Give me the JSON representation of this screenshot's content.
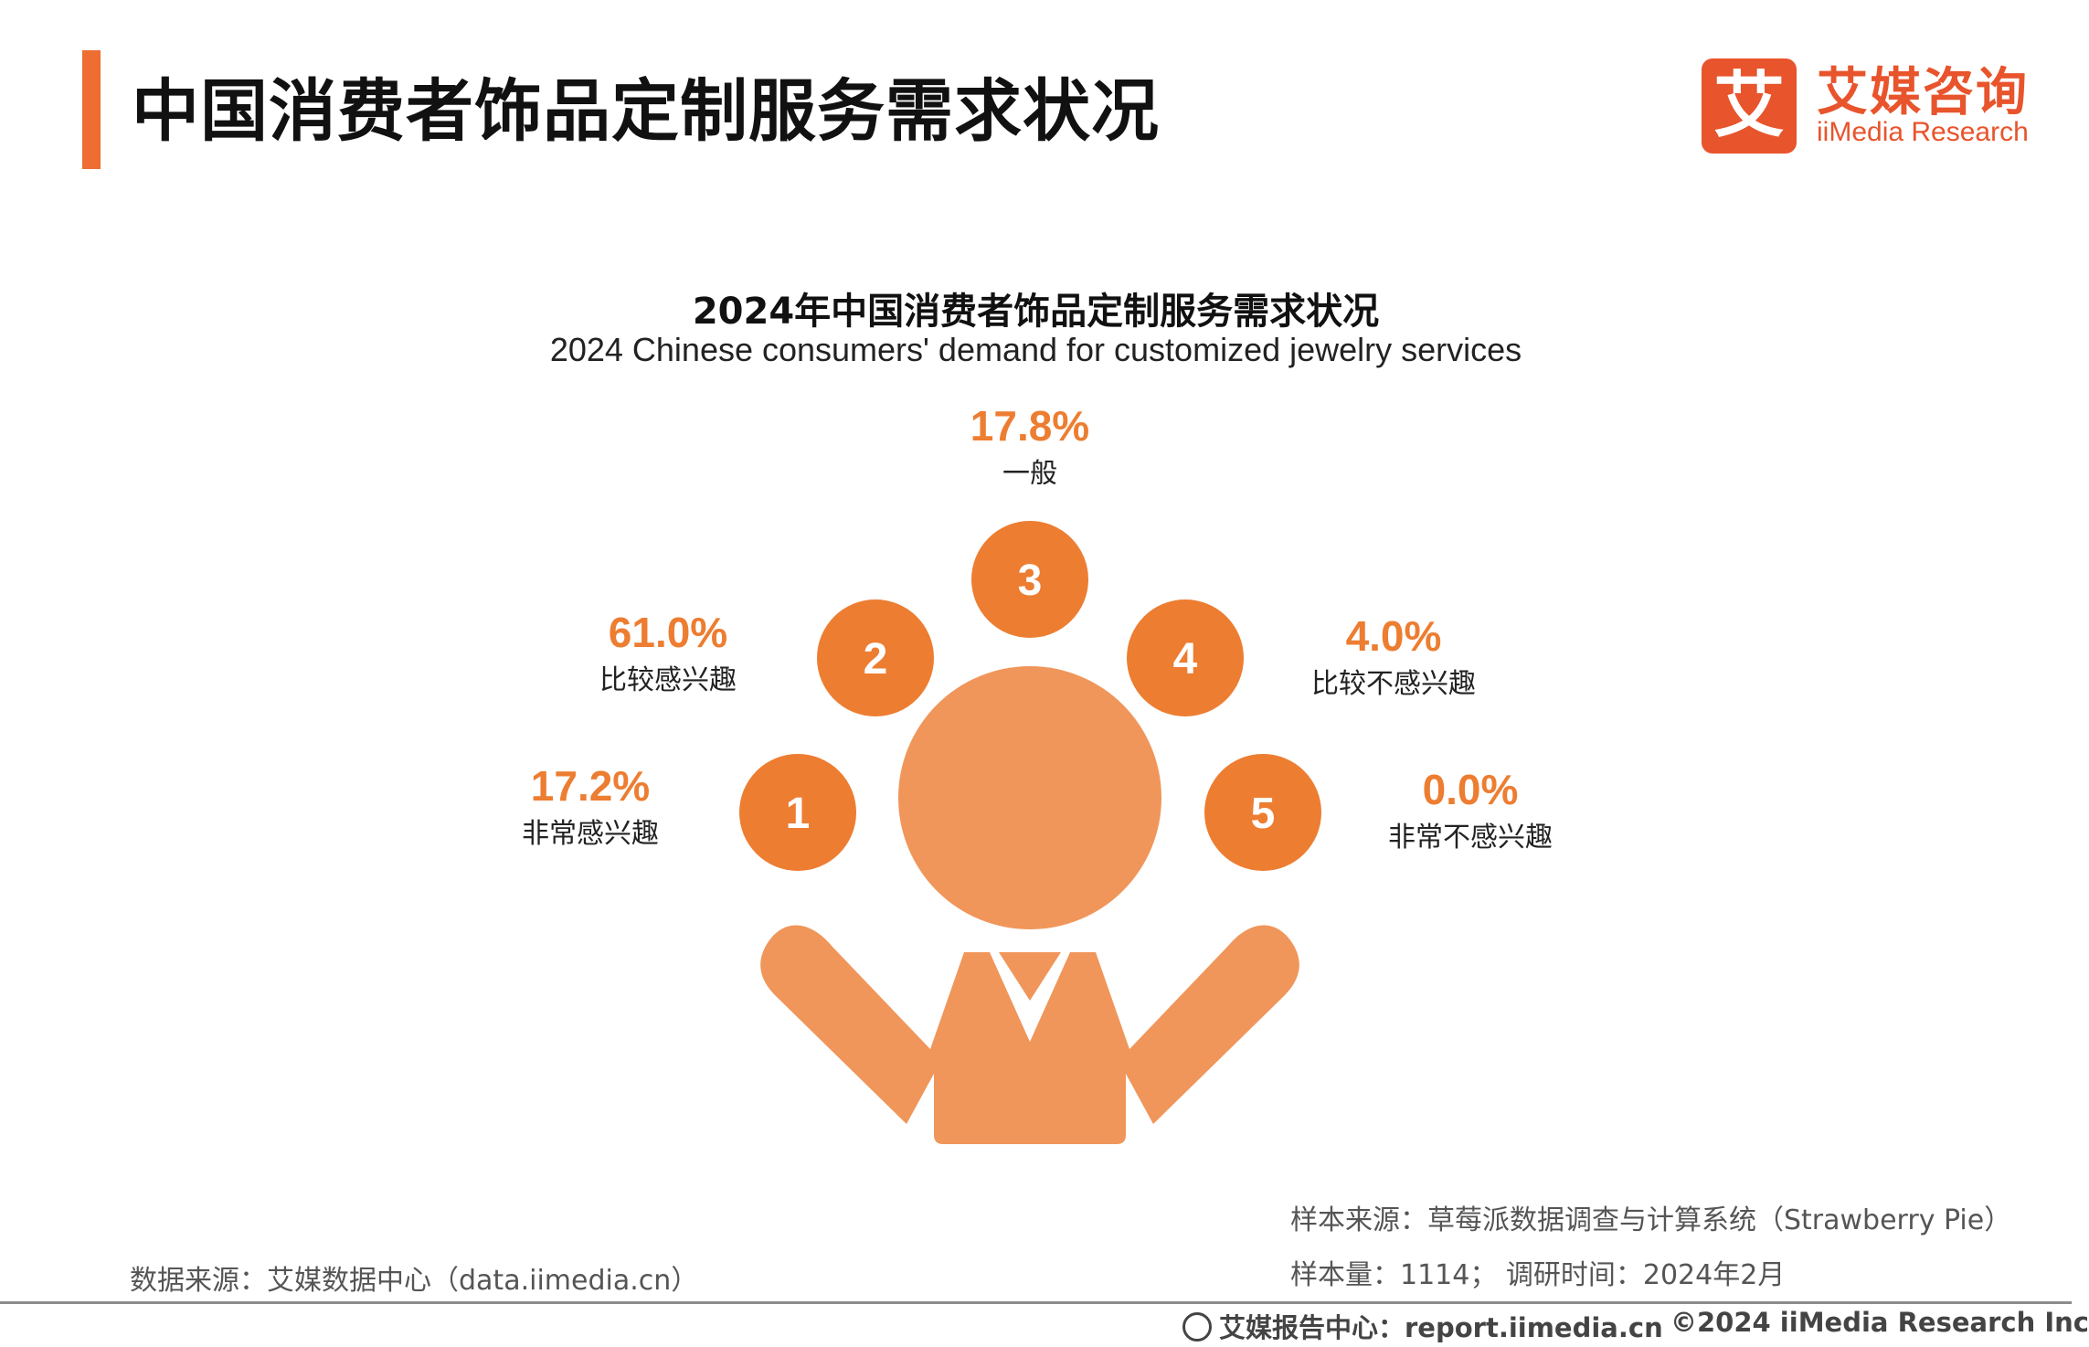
{
  "header": {
    "title": "中国消费者饰品定制服务需求状况",
    "accent_color": "#ed6d32"
  },
  "logo": {
    "mark": "艾",
    "cn": "艾媒咨询",
    "en": "iiMedia Research",
    "color": "#e8542c"
  },
  "chart_data": {
    "type": "pie",
    "title": "2024年中国消费者饰品定制服务需求状况",
    "subtitle": "2024 Chinese consumers' demand for customized jewelry services",
    "unit": "%",
    "categories": [
      {
        "rank": "1",
        "label": "非常感兴趣",
        "value": 17.2,
        "display": "17.2%"
      },
      {
        "rank": "2",
        "label": "比较感兴趣",
        "value": 61.0,
        "display": "61.0%"
      },
      {
        "rank": "3",
        "label": "一般",
        "value": 17.8,
        "display": "17.8%"
      },
      {
        "rank": "4",
        "label": "比较不感兴趣",
        "value": 4.0,
        "display": "4.0%"
      },
      {
        "rank": "5",
        "label": "非常不感兴趣",
        "value": 0.0,
        "display": "0.0%"
      }
    ],
    "colors": {
      "circle": "#ed7d31",
      "figure": "#f0965a",
      "value_text": "#ed7d31"
    }
  },
  "footer": {
    "sample_source": "样本来源：草莓派数据调查与计算系统（Strawberry Pie）",
    "sample_size": "样本量：1114； 调研时间：2024年2月",
    "data_source": "数据来源：艾媒数据中心（data.iimedia.cn）",
    "report_center": "艾媒报告中心：report.iimedia.cn",
    "copyright": "©2024  iiMedia Research  Inc"
  }
}
